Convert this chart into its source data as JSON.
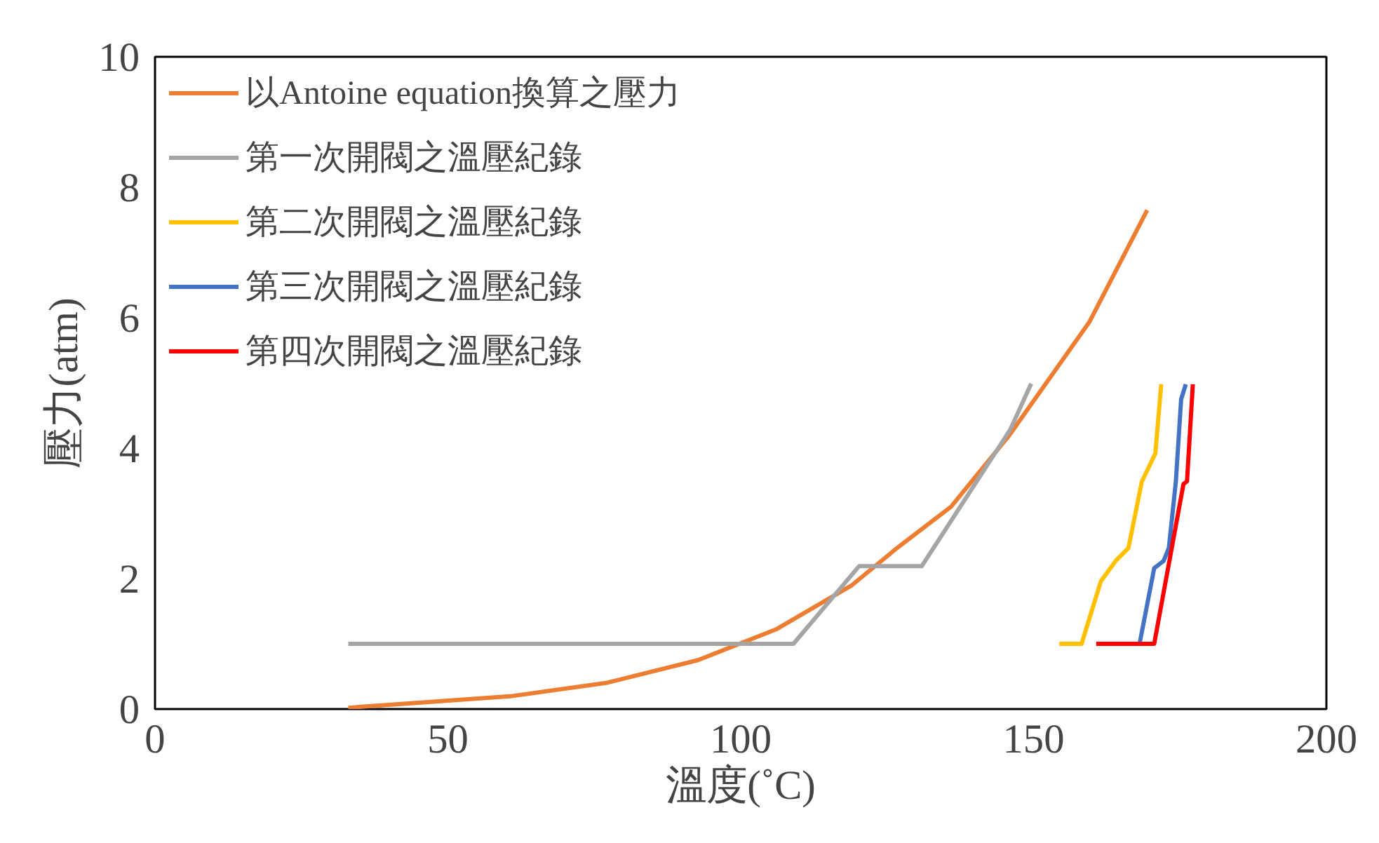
{
  "chart_data": {
    "type": "line",
    "xlabel": "溫度(˚C)",
    "ylabel": "壓力(atm)",
    "xlim": [
      0,
      200
    ],
    "ylim": [
      0,
      10
    ],
    "xticks": [
      0,
      50,
      100,
      150,
      200
    ],
    "yticks": [
      0,
      2,
      4,
      6,
      8,
      10
    ],
    "grid": false,
    "legend": "top left",
    "marker": "none",
    "line_style": "solid",
    "series": [
      {
        "name": "以Antoine equation換算之壓力",
        "color": "#ed7d31",
        "x": [
          33,
          61,
          77,
          92.7,
          106,
          119,
          126.7,
          135.9,
          145.8,
          159.5,
          169.4
        ],
        "values": [
          0.02,
          0.2,
          0.4,
          0.75,
          1.22,
          1.9,
          2.47,
          3.1,
          4.19,
          5.93,
          7.65
        ]
      },
      {
        "name": "第一次開閥之溫壓紀錄",
        "color": "#a5a5a5",
        "x": [
          33,
          109,
          120.2,
          130.9,
          146,
          149.6
        ],
        "values": [
          1,
          1,
          2.19,
          2.19,
          4.28,
          4.99
        ]
      },
      {
        "name": "第二次開閥之溫壓紀錄",
        "color": "#ffc000",
        "x": [
          154.4,
          158.2,
          161.5,
          164,
          166.2,
          168.5,
          170.8,
          171.8
        ],
        "values": [
          1,
          1,
          1.96,
          2.27,
          2.47,
          3.49,
          3.92,
          4.98
        ]
      },
      {
        "name": "第三次開閥之溫壓紀錄",
        "color": "#4472c4",
        "x": [
          168.1,
          170.6,
          172.2,
          173.1,
          174.3,
          175.2,
          176
        ],
        "values": [
          1,
          2.16,
          2.27,
          2.47,
          3.49,
          4.75,
          4.98
        ]
      },
      {
        "name": "第四次開閥之溫壓紀錄",
        "color": "#ff0000",
        "x": [
          160.7,
          170.6,
          175.6,
          176.2,
          177.2
        ],
        "values": [
          1,
          1,
          3.45,
          3.49,
          4.98
        ]
      }
    ]
  }
}
